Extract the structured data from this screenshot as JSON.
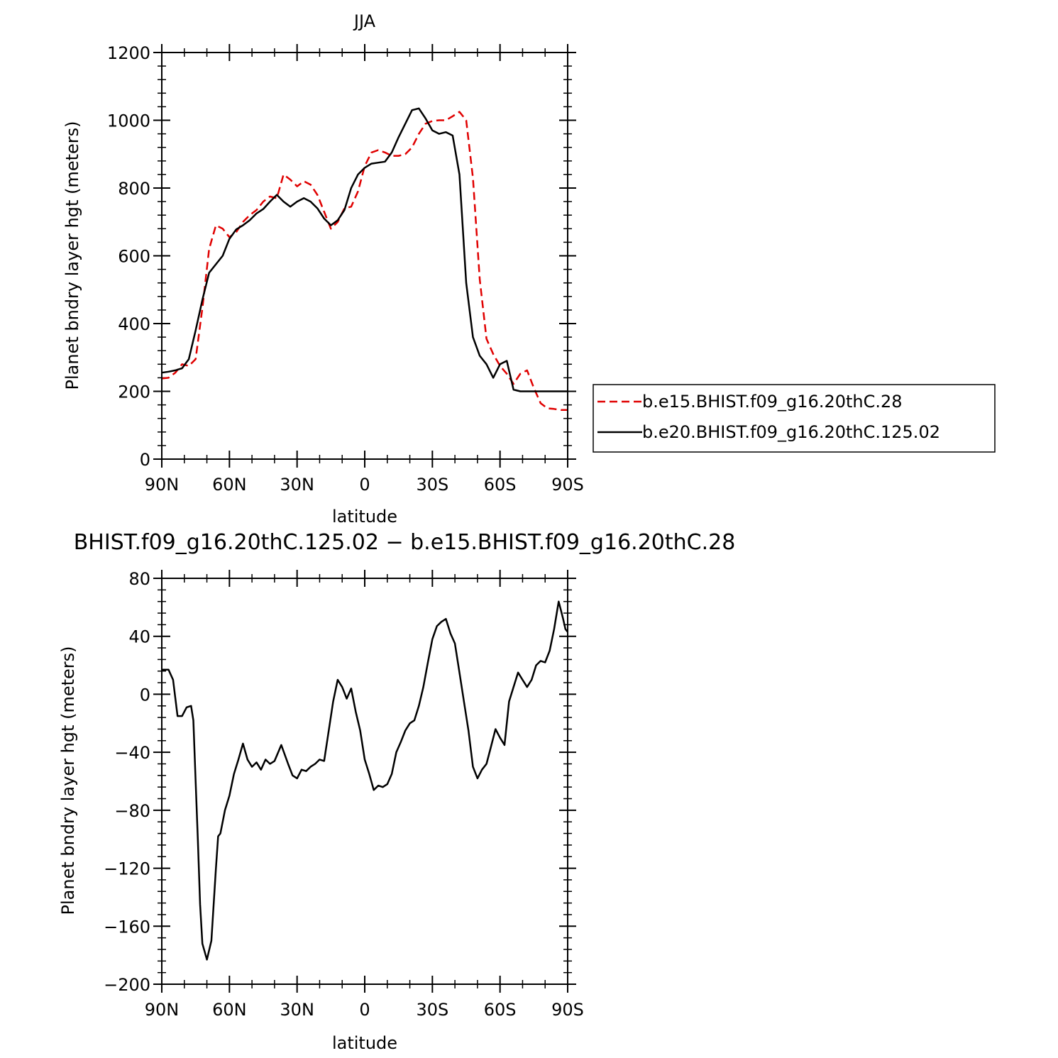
{
  "chart_data": [
    {
      "type": "line",
      "title": "JJA",
      "xlabel": "latitude",
      "ylabel": "Planet bndry layer hgt (meters)",
      "xlim": [
        -90,
        90
      ],
      "ylim": [
        0,
        1200
      ],
      "x_ticks": [
        -90,
        -60,
        -30,
        0,
        30,
        60,
        90
      ],
      "x_tick_labels": [
        "90N",
        "60N",
        "30N",
        "0",
        "30S",
        "60S",
        "90S"
      ],
      "y_ticks": [
        0,
        200,
        400,
        600,
        800,
        1000,
        1200
      ],
      "y_tick_labels": [
        "0",
        "200",
        "400",
        "600",
        "800",
        "1000",
        "1200"
      ],
      "legend": "right",
      "grid": false,
      "series": [
        {
          "name": "b.e15.BHIST.f09_g16.20thC.28",
          "color": "#e00000",
          "style": "dashed",
          "x": [
            -90,
            -87,
            -84,
            -81,
            -78,
            -75,
            -72,
            -69,
            -66,
            -63,
            -60,
            -57,
            -54,
            -51,
            -48,
            -45,
            -42,
            -39,
            -36,
            -33,
            -30,
            -27,
            -24,
            -21,
            -18,
            -15,
            -12,
            -9,
            -6,
            -3,
            0,
            3,
            6,
            9,
            12,
            15,
            18,
            21,
            24,
            27,
            30,
            33,
            36,
            39,
            42,
            45,
            48,
            51,
            54,
            57,
            60,
            63,
            66,
            69,
            72,
            75,
            78,
            81,
            84,
            87,
            90
          ],
          "y": [
            238,
            240,
            255,
            280,
            275,
            295,
            445,
            620,
            690,
            680,
            655,
            670,
            700,
            720,
            735,
            760,
            775,
            770,
            840,
            825,
            805,
            820,
            810,
            780,
            730,
            680,
            700,
            740,
            745,
            790,
            865,
            905,
            912,
            905,
            895,
            895,
            900,
            920,
            960,
            990,
            998,
            1000,
            1000,
            1012,
            1025,
            1000,
            830,
            530,
            355,
            310,
            275,
            252,
            222,
            252,
            262,
            210,
            165,
            150,
            148,
            145,
            145
          ]
        },
        {
          "name": "b.e20.BHIST.f09_g16.20thC.125.02",
          "color": "#000000",
          "style": "solid",
          "x": [
            -90,
            -87,
            -84,
            -81,
            -78,
            -75,
            -72,
            -69,
            -66,
            -63,
            -60,
            -57,
            -54,
            -51,
            -48,
            -45,
            -42,
            -39,
            -36,
            -33,
            -30,
            -27,
            -24,
            -21,
            -18,
            -15,
            -12,
            -9,
            -6,
            -3,
            0,
            3,
            6,
            9,
            12,
            15,
            18,
            21,
            24,
            27,
            30,
            33,
            36,
            39,
            42,
            45,
            48,
            51,
            54,
            57,
            60,
            63,
            66,
            69,
            72,
            75,
            78,
            81,
            84,
            87,
            90
          ],
          "y": [
            255,
            258,
            262,
            268,
            295,
            380,
            470,
            550,
            575,
            600,
            650,
            678,
            690,
            705,
            725,
            738,
            760,
            780,
            760,
            745,
            760,
            770,
            760,
            740,
            710,
            690,
            705,
            735,
            800,
            840,
            860,
            872,
            875,
            878,
            905,
            950,
            990,
            1030,
            1035,
            1005,
            970,
            960,
            965,
            955,
            840,
            520,
            360,
            305,
            280,
            240,
            280,
            290,
            205,
            200,
            200,
            200,
            200,
            200,
            200,
            200,
            200
          ]
        }
      ]
    },
    {
      "type": "line",
      "title": "BHIST.f09_g16.20thC.125.02 − b.e15.BHIST.f09_g16.20thC.28",
      "xlabel": "latitude",
      "ylabel": "Planet bndry layer hgt (meters)",
      "xlim": [
        -90,
        90
      ],
      "ylim": [
        -200,
        80
      ],
      "x_ticks": [
        -90,
        -60,
        -30,
        0,
        30,
        60,
        90
      ],
      "x_tick_labels": [
        "90N",
        "60N",
        "30N",
        "0",
        "30S",
        "60S",
        "90S"
      ],
      "y_ticks": [
        -200,
        -160,
        -120,
        -80,
        -40,
        0,
        40,
        80
      ],
      "y_tick_labels": [
        "−200",
        "−160",
        "−120",
        "−80",
        "−40",
        "0",
        "40",
        "80"
      ],
      "grid": false,
      "series": [
        {
          "color": "#000000",
          "style": "solid",
          "x": [
            -90,
            -87,
            -85,
            -83,
            -81,
            -79,
            -77,
            -76,
            -75,
            -74,
            -73,
            -72,
            -70,
            -68,
            -67,
            -66,
            -65,
            -64,
            -63,
            -62,
            -60,
            -58,
            -56,
            -54,
            -52,
            -50,
            -48,
            -46,
            -44,
            -42,
            -40,
            -37,
            -34,
            -32,
            -30,
            -28,
            -26,
            -24,
            -22,
            -20,
            -18,
            -14,
            -12,
            -10,
            -8,
            -6,
            -4,
            -2,
            0,
            2,
            4,
            6,
            8,
            10,
            12,
            14,
            16,
            18,
            20,
            22,
            24,
            26,
            28,
            30,
            32,
            34,
            36,
            38,
            40,
            42,
            44,
            46,
            48,
            50,
            52,
            54,
            56,
            58,
            60,
            62,
            64,
            66,
            68,
            70,
            72,
            74,
            76,
            78,
            80,
            82,
            84,
            86,
            87,
            88,
            89,
            90
          ],
          "y": [
            17,
            17,
            10,
            -15,
            -15,
            -9,
            -8,
            -18,
            -60,
            -100,
            -145,
            -172,
            -183,
            -170,
            -145,
            -120,
            -98,
            -96,
            -88,
            -80,
            -70,
            -55,
            -45,
            -34,
            -45,
            -50,
            -47,
            -52,
            -45,
            -48,
            -46,
            -35,
            -48,
            -56,
            -58,
            -52,
            -53,
            -50,
            -48,
            -45,
            -46,
            -5,
            10,
            5,
            -3,
            4,
            -12,
            -25,
            -45,
            -55,
            -66,
            -63,
            -64,
            -62,
            -55,
            -40,
            -33,
            -25,
            -20,
            -18,
            -8,
            5,
            22,
            38,
            47,
            50,
            52,
            42,
            35,
            15,
            -5,
            -25,
            -50,
            -58,
            -52,
            -48,
            -36,
            -24,
            -30,
            -35,
            -5,
            5,
            15,
            10,
            5,
            10,
            20,
            23,
            22,
            30,
            45,
            64,
            58,
            52,
            45,
            43
          ]
        }
      ]
    }
  ]
}
